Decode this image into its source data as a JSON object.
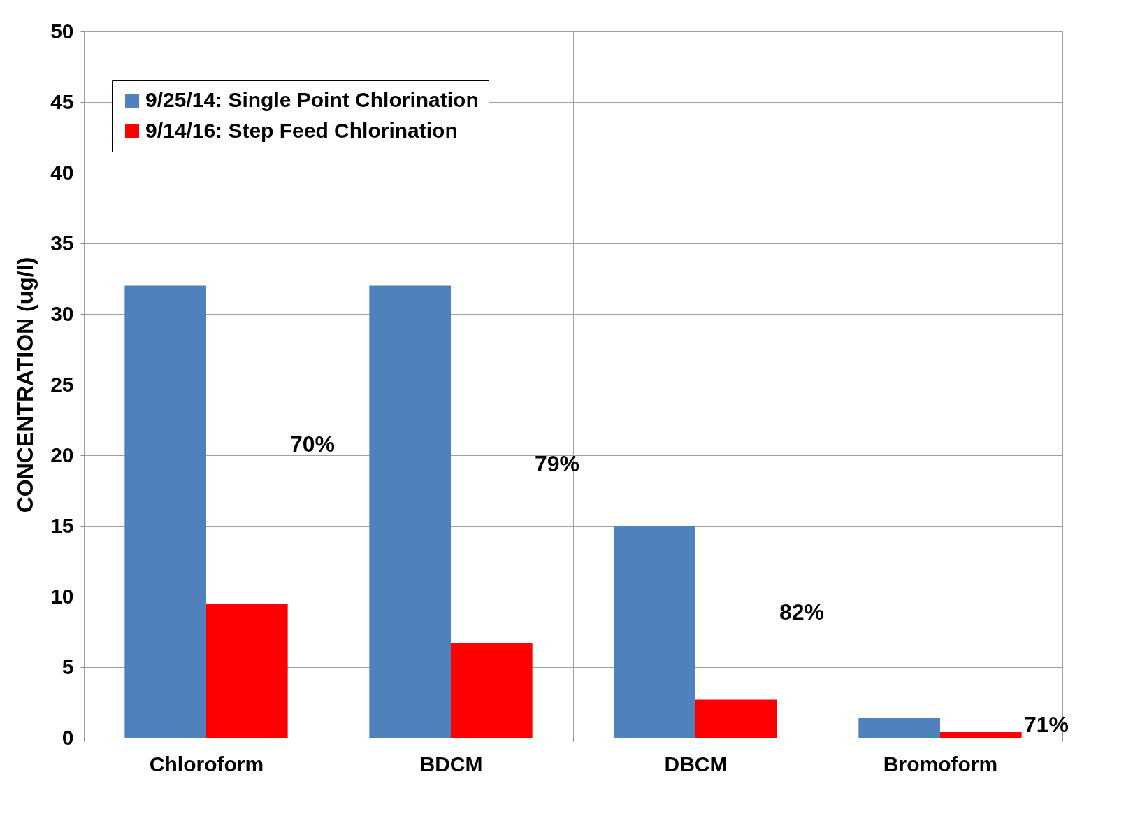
{
  "chart_data": {
    "type": "bar",
    "ylabel": "CONCENTRATION (ug/l)",
    "categories": [
      "Chloroform",
      "BDCM",
      "DBCM",
      "Bromoform"
    ],
    "series": [
      {
        "name": "9/25/14: Single Point Chlorination",
        "color": "#4f81bd",
        "values": [
          32,
          32,
          15,
          1.4
        ]
      },
      {
        "name": "9/14/16: Step Feed Chlorination",
        "color": "#ff0000",
        "values": [
          9.5,
          6.7,
          2.7,
          0.4
        ]
      }
    ],
    "ylim": [
      0,
      50
    ],
    "yticks": [
      0,
      5,
      10,
      15,
      20,
      25,
      30,
      35,
      40,
      45,
      50
    ],
    "grid": true,
    "legend": "top left",
    "annotations": [
      "70%",
      "79%",
      "82%",
      "71%"
    ]
  }
}
